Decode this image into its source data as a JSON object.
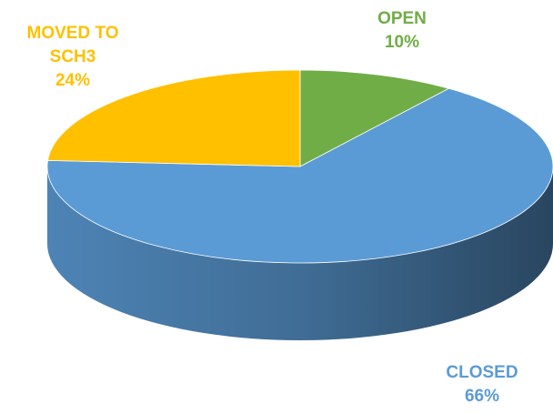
{
  "chart_data": {
    "type": "pie",
    "categories": [
      "OPEN",
      "CLOSED",
      "MOVED TO SCH3"
    ],
    "values": [
      10,
      66,
      24
    ],
    "value_labels": [
      "10%",
      "66%",
      "24%"
    ],
    "colors": [
      "#70ad47",
      "#5b9bd5",
      "#ffc000"
    ]
  }
}
